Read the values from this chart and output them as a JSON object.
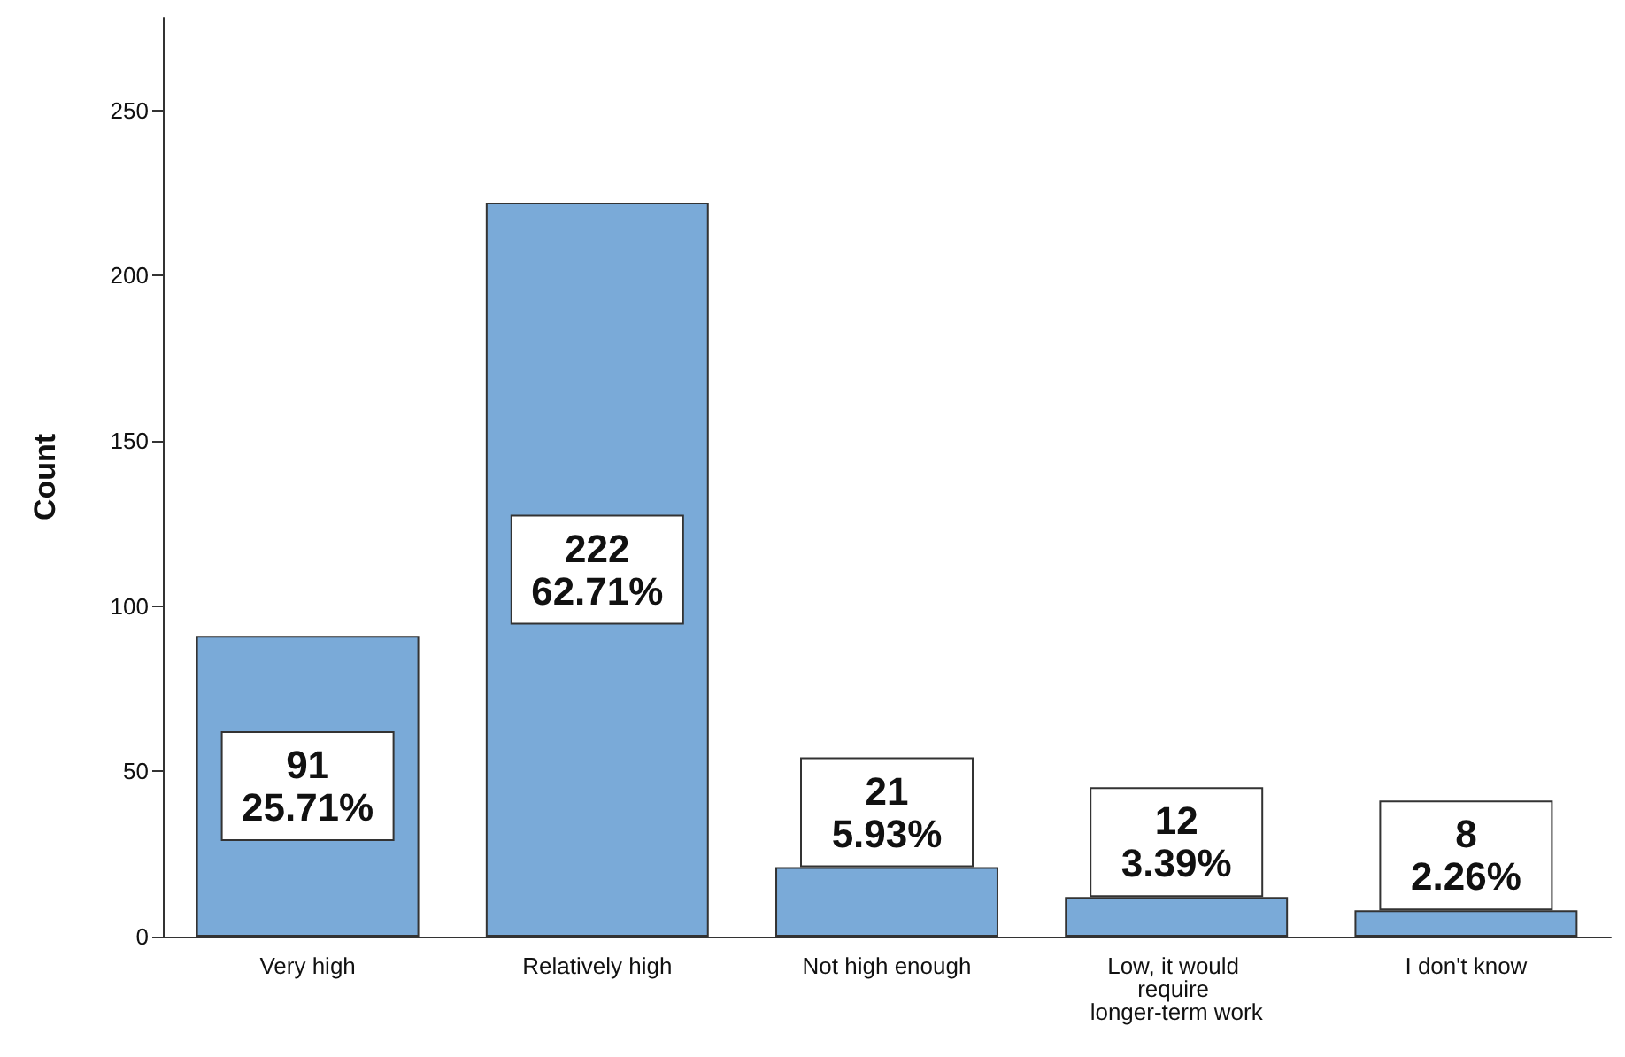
{
  "chart_data": {
    "type": "bar",
    "ylabel": "Count",
    "categories": [
      "Very high",
      "Relatively high",
      "Not high enough",
      "Low, it would require longer-term work",
      "I don't know"
    ],
    "values": [
      91,
      222,
      21,
      12,
      8
    ],
    "value_labels": [
      "91\n25.71%",
      "222\n62.71%",
      "21\n5.93%",
      "12\n3.39%",
      "8\n2.26%"
    ],
    "color": "#7aaad8",
    "ylim": [
      0,
      278
    ],
    "yticks": [
      0,
      50,
      100,
      150,
      200,
      250
    ],
    "grid": false
  }
}
